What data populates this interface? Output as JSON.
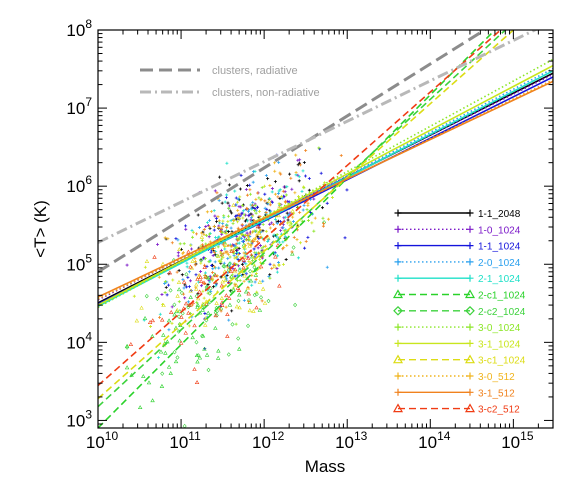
{
  "chart_data": {
    "type": "scatter",
    "xlabel": "Mass",
    "ylabel": "<T> (K)",
    "xscale": "log",
    "yscale": "log",
    "xlim": [
      10000000000.0,
      3000000000000000.0
    ],
    "ylim": [
      800,
      100000000.0
    ],
    "x_ticks": [
      {
        "value": 10000000000.0,
        "base": "10",
        "exp": "10"
      },
      {
        "value": 100000000000.0,
        "base": "10",
        "exp": "11"
      },
      {
        "value": 1000000000000.0,
        "base": "10",
        "exp": "12"
      },
      {
        "value": 10000000000000.0,
        "base": "10",
        "exp": "13"
      },
      {
        "value": 100000000000000.0,
        "base": "10",
        "exp": "14"
      },
      {
        "value": 1000000000000000.0,
        "base": "10",
        "exp": "15"
      }
    ],
    "y_ticks": [
      {
        "value": 1000.0,
        "base": "10",
        "exp": "3"
      },
      {
        "value": 10000.0,
        "base": "10",
        "exp": "4"
      },
      {
        "value": 100000.0,
        "base": "10",
        "exp": "5"
      },
      {
        "value": 1000000.0,
        "base": "10",
        "exp": "6"
      },
      {
        "value": 10000000.0,
        "base": "10",
        "exp": "7"
      },
      {
        "value": 100000000.0,
        "base": "10",
        "exp": "8"
      }
    ],
    "reference_lines": [
      {
        "name": "clusters, radiative",
        "color": "#8c8c8c",
        "dash": "longdash",
        "points": [
          [
            10000000000.0,
            80000
          ],
          [
            1000000000000000.0,
            170000000.0
          ]
        ]
      },
      {
        "name": "clusters, non-radiative",
        "color": "#b8b8b8",
        "dash": "dashdot",
        "points": [
          [
            10000000000.0,
            190000
          ],
          [
            3000000000000000.0,
            130000000.0
          ]
        ]
      }
    ],
    "series": [
      {
        "name": "1-1_2048",
        "color": "#000000",
        "dash": "solid",
        "marker": "plus",
        "fit": [
          [
            10000000000.0,
            32000
          ],
          [
            3000000000000000.0,
            28000000.0
          ]
        ],
        "scatter_center": [
          560000000000.0,
          250000
        ]
      },
      {
        "name": "1-0_1024",
        "color": "#7b19c8",
        "dash": "dotted",
        "marker": "plus",
        "fit": [
          [
            10000000000.0,
            35000
          ],
          [
            3000000000000000.0,
            27000000.0
          ]
        ],
        "scatter_center": [
          560000000000.0,
          280000
        ]
      },
      {
        "name": "1-1_1024",
        "color": "#1414dc",
        "dash": "solid",
        "marker": "plus",
        "fit": [
          [
            10000000000.0,
            31000
          ],
          [
            3000000000000000.0,
            25000000.0
          ]
        ],
        "scatter_center": [
          560000000000.0,
          230000
        ]
      },
      {
        "name": "2-0_1024",
        "color": "#2aa0ee",
        "dash": "dotted",
        "marker": "plus",
        "fit": [
          [
            10000000000.0,
            30000
          ],
          [
            3000000000000000.0,
            32000000.0
          ]
        ],
        "scatter_center": [
          560000000000.0,
          200000
        ]
      },
      {
        "name": "2-1_1024",
        "color": "#1ee0c8",
        "dash": "solid",
        "marker": "plus",
        "fit": [
          [
            10000000000.0,
            29000
          ],
          [
            3000000000000000.0,
            30000000.0
          ]
        ],
        "scatter_center": [
          560000000000.0,
          180000
        ]
      },
      {
        "name": "2-c1_1024",
        "color": "#2ad22a",
        "dash": "dashed",
        "marker": "triangle",
        "fit": [
          [
            10000000000.0,
            800
          ],
          [
            600000000000000.0,
            100000000.0
          ]
        ],
        "scatter_center": [
          180000000000.0,
          20000
        ]
      },
      {
        "name": "2-c2_1024",
        "color": "#3cd23c",
        "dash": "dashed",
        "marker": "diamond",
        "fit": [
          [
            10000000000.0,
            1500
          ],
          [
            800000000000000.0,
            100000000.0
          ]
        ],
        "scatter_center": [
          200000000000.0,
          30000
        ]
      },
      {
        "name": "3-0_1024",
        "color": "#8ce628",
        "dash": "dotted",
        "marker": "plus",
        "fit": [
          [
            10000000000.0,
            28000
          ],
          [
            3000000000000000.0,
            42000000.0
          ]
        ],
        "scatter_center": [
          560000000000.0,
          190000
        ]
      },
      {
        "name": "3-1_1024",
        "color": "#c8e61e",
        "dash": "solid",
        "marker": "plus",
        "fit": [
          [
            10000000000.0,
            30000
          ],
          [
            3000000000000000.0,
            35000000.0
          ]
        ],
        "scatter_center": [
          560000000000.0,
          170000
        ]
      },
      {
        "name": "3-c1_1024",
        "color": "#dcdc14",
        "dash": "dashed",
        "marker": "triangle",
        "fit": [
          [
            10000000000.0,
            1900
          ],
          [
            1000000000000000.0,
            100000000.0
          ]
        ],
        "scatter_center": [
          220000000000.0,
          60000
        ]
      },
      {
        "name": "3-0_512",
        "color": "#f0b41e",
        "dash": "dotted",
        "marker": "plus",
        "fit": [
          [
            10000000000.0,
            36000
          ],
          [
            3000000000000000.0,
            23000000.0
          ]
        ],
        "scatter_center": [
          560000000000.0,
          220000
        ]
      },
      {
        "name": "3-1_512",
        "color": "#f0821e",
        "dash": "solid",
        "marker": "plus",
        "fit": [
          [
            10000000000.0,
            38000
          ],
          [
            3000000000000000.0,
            22000000.0
          ]
        ],
        "scatter_center": [
          560000000000.0,
          210000
        ]
      },
      {
        "name": "3-c2_512",
        "color": "#f03c14",
        "dash": "dashed",
        "marker": "triangle",
        "fit": [
          [
            10000000000.0,
            2800
          ],
          [
            700000000000000.0,
            100000000.0
          ]
        ],
        "scatter_center": [
          250000000000.0,
          50000
        ]
      }
    ]
  }
}
